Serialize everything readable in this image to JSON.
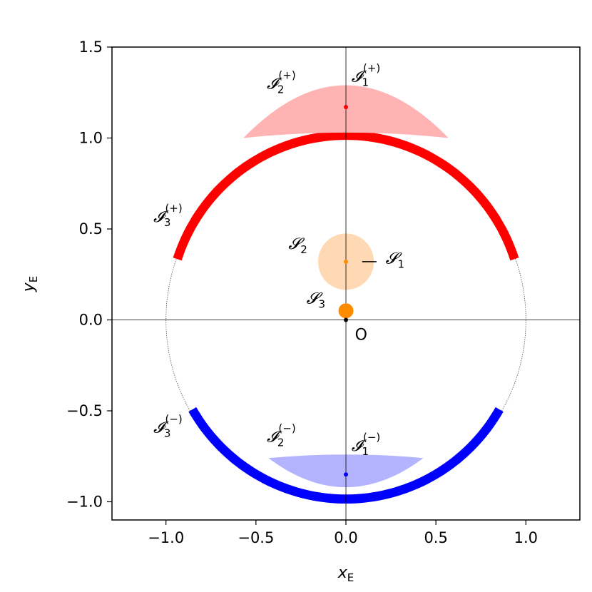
{
  "chart_data": {
    "type": "scatter",
    "xlabel_var": "x",
    "xlabel_sub": "E",
    "ylabel_var": "y",
    "ylabel_sub": "E",
    "xlim": [
      -1.3,
      1.3
    ],
    "ylim": [
      -1.1,
      1.5
    ],
    "xticks": [
      -1.0,
      -0.5,
      0.0,
      0.5,
      1.0
    ],
    "xtick_labels": [
      "−1.0",
      "−0.5",
      "0.0",
      "0.5",
      "1.0"
    ],
    "yticks": [
      -1.0,
      -0.5,
      0.0,
      0.5,
      1.0,
      1.5
    ],
    "ytick_labels": [
      "−1.0",
      "−0.5",
      "0.0",
      "0.5",
      "1.0",
      "1.5"
    ],
    "grid": false,
    "unit_circle": {
      "center": [
        0,
        0
      ],
      "radius": 1.0
    },
    "upper_ring": {
      "color": "#ff0000",
      "center": [
        0,
        0.03
      ],
      "radius": 0.985,
      "thickness": 0.05,
      "start_angle_deg": 18,
      "end_angle_deg": 162
    },
    "lower_ring": {
      "color": "#0000ff",
      "center": [
        0,
        0.0
      ],
      "radius": 0.985,
      "thickness": 0.05,
      "start_angle_deg": 210,
      "end_angle_deg": 330
    },
    "upper_crescent": {
      "color": "#ffb3b3",
      "top_y": 1.27,
      "inner_y": 1.03,
      "x_left": -0.57,
      "x_right": 0.57,
      "tip_y": 1.0
    },
    "lower_crescent": {
      "color": "#b3b3ff",
      "top_y": -0.74,
      "bottom_y": -0.92,
      "x_left": -0.43,
      "x_right": 0.43,
      "tip_y": -0.76
    },
    "source_disk": {
      "color": "#ffd9b3",
      "center": [
        0,
        0.32
      ],
      "radius": 0.155
    },
    "points": [
      {
        "name": "I1_plus",
        "x": 0.0,
        "y": 1.17,
        "color": "#ff0000"
      },
      {
        "name": "I1_minus",
        "x": 0.0,
        "y": -0.85,
        "color": "#0000ff"
      },
      {
        "name": "S1",
        "x": 0.0,
        "y": 0.32,
        "color": "#ff8c00"
      },
      {
        "name": "S3",
        "x": 0.0,
        "y": 0.05,
        "color": "#ff8c00",
        "big": true
      },
      {
        "name": "O",
        "x": 0.0,
        "y": 0.0,
        "color": "#000000"
      }
    ],
    "annotations": [
      {
        "id": "ann-I1-plus",
        "main": "𝓘",
        "sub": "1",
        "sup": "(+)",
        "x": 0.03,
        "y": 1.31
      },
      {
        "id": "ann-I2-plus",
        "main": "𝓘",
        "sub": "2",
        "sup": "(+)",
        "x": -0.44,
        "y": 1.27
      },
      {
        "id": "ann-I3-plus",
        "main": "𝓘",
        "sub": "3",
        "sup": "(+)",
        "x": -1.07,
        "y": 0.54
      },
      {
        "id": "ann-S1",
        "main": "𝓢",
        "sub": "1",
        "sup": "",
        "x": 0.22,
        "y": 0.31
      },
      {
        "id": "ann-S2",
        "main": "𝓢",
        "sub": "2",
        "sup": "",
        "x": -0.32,
        "y": 0.39
      },
      {
        "id": "ann-S3",
        "main": "𝓢",
        "sub": "3",
        "sup": "",
        "x": -0.22,
        "y": 0.09
      },
      {
        "id": "ann-I3-minus",
        "main": "𝓘",
        "sub": "3",
        "sup": "(−)",
        "x": -1.07,
        "y": -0.62
      },
      {
        "id": "ann-I2-minus",
        "main": "𝓘",
        "sub": "2",
        "sup": "(−)",
        "x": -0.44,
        "y": -0.67
      },
      {
        "id": "ann-I1-minus",
        "main": "𝓘",
        "sub": "1",
        "sup": "(−)",
        "x": 0.03,
        "y": -0.72
      }
    ],
    "origin_label": "O",
    "s1_leader": {
      "x1": 0.09,
      "x2": 0.17,
      "y": 0.32
    }
  }
}
